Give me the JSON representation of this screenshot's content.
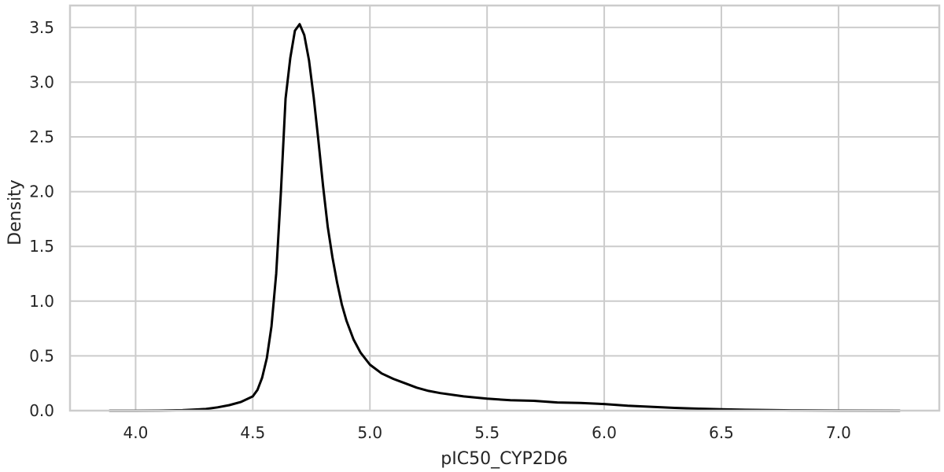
{
  "chart_data": {
    "type": "line",
    "title": "",
    "xlabel": "pIC50_CYP2D6",
    "ylabel": "Density",
    "xlim": [
      3.72,
      7.43
    ],
    "ylim": [
      0,
      3.7
    ],
    "grid": true,
    "x_ticks": [
      "4.0",
      "4.5",
      "5.0",
      "5.5",
      "6.0",
      "6.5",
      "7.0"
    ],
    "y_ticks": [
      "0.0",
      "0.5",
      "1.0",
      "1.5",
      "2.0",
      "2.5",
      "3.0",
      "3.5"
    ],
    "colors": {
      "line": "#000000",
      "grid": "#cccccc",
      "frame": "#cccccc",
      "text": "#262626"
    },
    "series": [
      {
        "x": [
          3.89,
          4.0,
          4.1,
          4.2,
          4.3,
          4.35,
          4.4,
          4.45,
          4.5,
          4.52,
          4.54,
          4.56,
          4.58,
          4.6,
          4.62,
          4.64,
          4.66,
          4.68,
          4.7,
          4.72,
          4.74,
          4.76,
          4.78,
          4.8,
          4.82,
          4.84,
          4.86,
          4.88,
          4.9,
          4.93,
          4.96,
          5.0,
          5.05,
          5.1,
          5.15,
          5.2,
          5.25,
          5.3,
          5.4,
          5.5,
          5.6,
          5.7,
          5.8,
          5.9,
          6.0,
          6.1,
          6.2,
          6.3,
          6.4,
          6.5,
          6.6,
          6.7,
          6.8,
          7.0,
          7.26
        ],
        "y": [
          0.0,
          0.0,
          0.001,
          0.004,
          0.015,
          0.03,
          0.05,
          0.08,
          0.13,
          0.19,
          0.3,
          0.48,
          0.77,
          1.25,
          2.0,
          2.85,
          3.22,
          3.47,
          3.53,
          3.43,
          3.2,
          2.86,
          2.47,
          2.05,
          1.68,
          1.4,
          1.17,
          0.97,
          0.82,
          0.65,
          0.53,
          0.42,
          0.34,
          0.29,
          0.25,
          0.21,
          0.18,
          0.16,
          0.13,
          0.11,
          0.095,
          0.09,
          0.075,
          0.07,
          0.06,
          0.045,
          0.035,
          0.025,
          0.018,
          0.012,
          0.008,
          0.005,
          0.003,
          0.001,
          0.0
        ]
      }
    ]
  }
}
